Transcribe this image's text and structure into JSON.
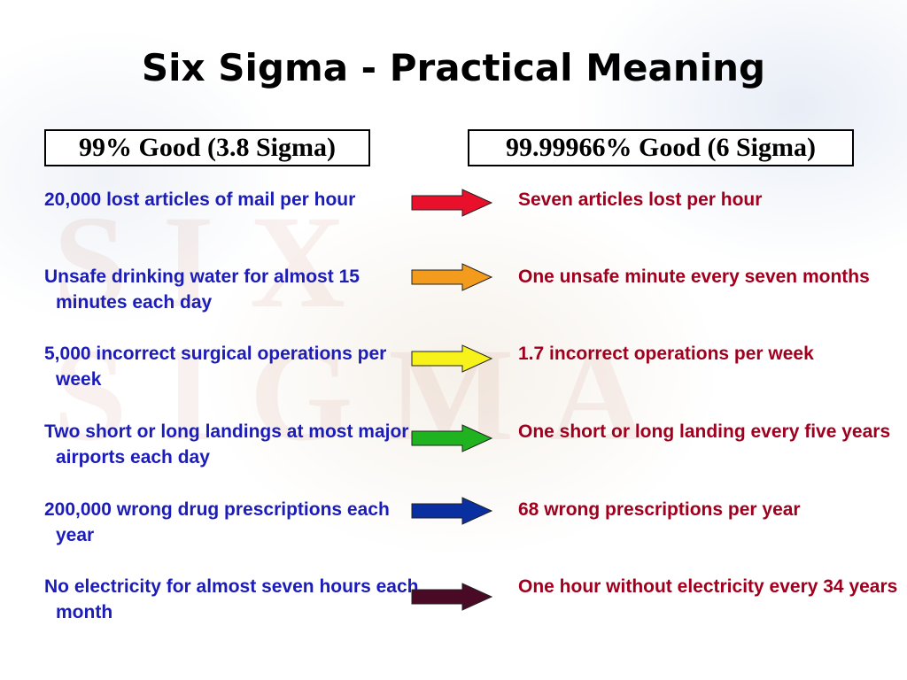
{
  "title": "Six Sigma - Practical Meaning",
  "header_left": "99% Good (3.8 Sigma)",
  "header_right": "99.99966% Good (6 Sigma)",
  "watermark": [
    "SIX",
    "SIGMA"
  ],
  "rows": [
    {
      "left": "20,000 lost articles of mail per hour",
      "right": "Seven articles lost per hour",
      "arrow_color": "#e8102a"
    },
    {
      "left": "Unsafe drinking water for almost 15 minutes each day",
      "right": "One unsafe minute every seven months",
      "arrow_color": "#f39b1c"
    },
    {
      "left": "5,000 incorrect surgical operations per week",
      "right": "1.7 incorrect operations per week",
      "arrow_color": "#f6f21a"
    },
    {
      "left": "Two short or long landings at most major airports each day",
      "right": "One short or long landing every five years",
      "arrow_color": "#1fb31f"
    },
    {
      "left": "200,000 wrong drug prescriptions each year",
      "right": "68 wrong prescriptions per year",
      "arrow_color": "#0a2fa0"
    },
    {
      "left": "No electricity for almost seven hours each month",
      "right": "One hour without electricity every 34 years",
      "arrow_color": "#4a0a26"
    }
  ]
}
